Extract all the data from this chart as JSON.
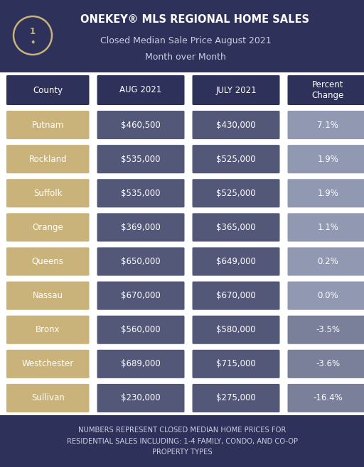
{
  "title_line1": "ONEKEY® MLS REGIONAL HOME SALES",
  "title_line2": "Closed Median Sale Price August 2021",
  "title_line3": "Month over Month",
  "header_bg": "#2e3159",
  "table_bg": "#ffffff",
  "footer_bg": "#2e3159",
  "county_cell_color": "#c9b37a",
  "aug_cell_color": "#545878",
  "july_cell_color": "#545878",
  "pct_pos_color": "#9198b2",
  "pct_neg_color": "#7a7f9a",
  "col_header_color": "#2e3159",
  "col_header_text": "#ffffff",
  "col_headers": [
    "County",
    "AUG 2021",
    "JULY 2021",
    "Percent\nChange"
  ],
  "rows": [
    {
      "county": "Putnam",
      "aug": "$460,500",
      "july": "$430,000",
      "pct": "7.1%",
      "pct_neg": false
    },
    {
      "county": "Rockland",
      "aug": "$535,000",
      "july": "$525,000",
      "pct": "1.9%",
      "pct_neg": false
    },
    {
      "county": "Suffolk",
      "aug": "$535,000",
      "july": "$525,000",
      "pct": "1.9%",
      "pct_neg": false
    },
    {
      "county": "Orange",
      "aug": "$369,000",
      "july": "$365,000",
      "pct": "1.1%",
      "pct_neg": false
    },
    {
      "county": "Queens",
      "aug": "$650,000",
      "july": "$649,000",
      "pct": "0.2%",
      "pct_neg": false
    },
    {
      "county": "Nassau",
      "aug": "$670,000",
      "july": "$670,000",
      "pct": "0.0%",
      "pct_neg": false
    },
    {
      "county": "Bronx",
      "aug": "$560,000",
      "july": "$580,000",
      "pct": "-3.5%",
      "pct_neg": true
    },
    {
      "county": "Westchester",
      "aug": "$689,000",
      "july": "$715,000",
      "pct": "-3.6%",
      "pct_neg": true
    },
    {
      "county": "Sullivan",
      "aug": "$230,000",
      "july": "$275,000",
      "pct": "-16.4%",
      "pct_neg": true
    }
  ],
  "footer_text": "NUMBERS REPRESENT CLOSED MEDIAN HOME PRICES FOR\nRESIDENTIAL SALES INCLUDING: 1-4 FAMILY, CONDO, AND CO-OP\nPROPERTY TYPES",
  "icon_color": "#c9b37a",
  "text_white": "#ffffff",
  "text_light": "#cdd0e3"
}
